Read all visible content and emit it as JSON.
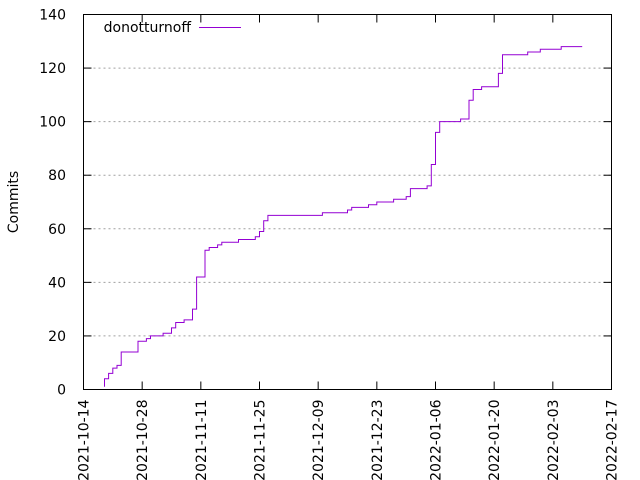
{
  "chart_data": {
    "type": "line",
    "title": "",
    "xlabel": "",
    "ylabel": "Commits",
    "xlim": [
      "2021-10-14",
      "2022-02-17"
    ],
    "ylim": [
      0,
      140
    ],
    "x_ticks": [
      "2021-10-14",
      "2021-10-28",
      "2021-11-11",
      "2021-11-25",
      "2021-12-09",
      "2021-12-23",
      "2022-01-06",
      "2022-01-20",
      "2022-02-03",
      "2022-02-17"
    ],
    "y_ticks": [
      0,
      20,
      40,
      60,
      80,
      100,
      120,
      140
    ],
    "grid": true,
    "legend": "top-left",
    "series": [
      {
        "name": "donotturnoff",
        "color": "#9400d3",
        "points": [
          [
            "2021-10-19",
            1
          ],
          [
            "2021-10-19",
            4
          ],
          [
            "2021-10-20",
            6
          ],
          [
            "2021-10-21",
            8
          ],
          [
            "2021-10-22",
            9
          ],
          [
            "2021-10-23",
            10
          ],
          [
            "2021-10-23",
            14
          ],
          [
            "2021-10-25",
            14
          ],
          [
            "2021-10-27",
            15
          ],
          [
            "2021-10-27",
            18
          ],
          [
            "2021-10-29",
            19
          ],
          [
            "2021-10-30",
            20
          ],
          [
            "2021-11-02",
            21
          ],
          [
            "2021-11-04",
            23
          ],
          [
            "2021-11-05",
            25
          ],
          [
            "2021-11-07",
            26
          ],
          [
            "2021-11-09",
            27
          ],
          [
            "2021-11-09",
            30
          ],
          [
            "2021-11-10",
            38
          ],
          [
            "2021-11-10",
            42
          ],
          [
            "2021-11-12",
            47
          ],
          [
            "2021-11-12",
            52
          ],
          [
            "2021-11-13",
            53
          ],
          [
            "2021-11-15",
            54
          ],
          [
            "2021-11-16",
            55
          ],
          [
            "2021-11-20",
            56
          ],
          [
            "2021-11-24",
            57
          ],
          [
            "2021-11-25",
            59
          ],
          [
            "2021-11-26",
            63
          ],
          [
            "2021-11-27",
            65
          ],
          [
            "2021-12-01",
            65
          ],
          [
            "2021-12-10",
            66
          ],
          [
            "2021-12-16",
            67
          ],
          [
            "2021-12-17",
            68
          ],
          [
            "2021-12-21",
            69
          ],
          [
            "2021-12-23",
            70
          ],
          [
            "2021-12-27",
            71
          ],
          [
            "2021-12-30",
            72
          ],
          [
            "2021-12-31",
            75
          ],
          [
            "2022-01-04",
            76
          ],
          [
            "2022-01-05",
            84
          ],
          [
            "2022-01-06",
            96
          ],
          [
            "2022-01-07",
            100
          ],
          [
            "2022-01-12",
            101
          ],
          [
            "2022-01-14",
            102
          ],
          [
            "2022-01-14",
            108
          ],
          [
            "2022-01-15",
            112
          ],
          [
            "2022-01-17",
            113
          ],
          [
            "2022-01-20",
            113
          ],
          [
            "2022-01-21",
            118
          ],
          [
            "2022-01-22",
            125
          ],
          [
            "2022-01-28",
            126
          ],
          [
            "2022-01-31",
            127
          ],
          [
            "2022-02-05",
            128
          ],
          [
            "2022-02-10",
            128
          ]
        ]
      }
    ]
  }
}
